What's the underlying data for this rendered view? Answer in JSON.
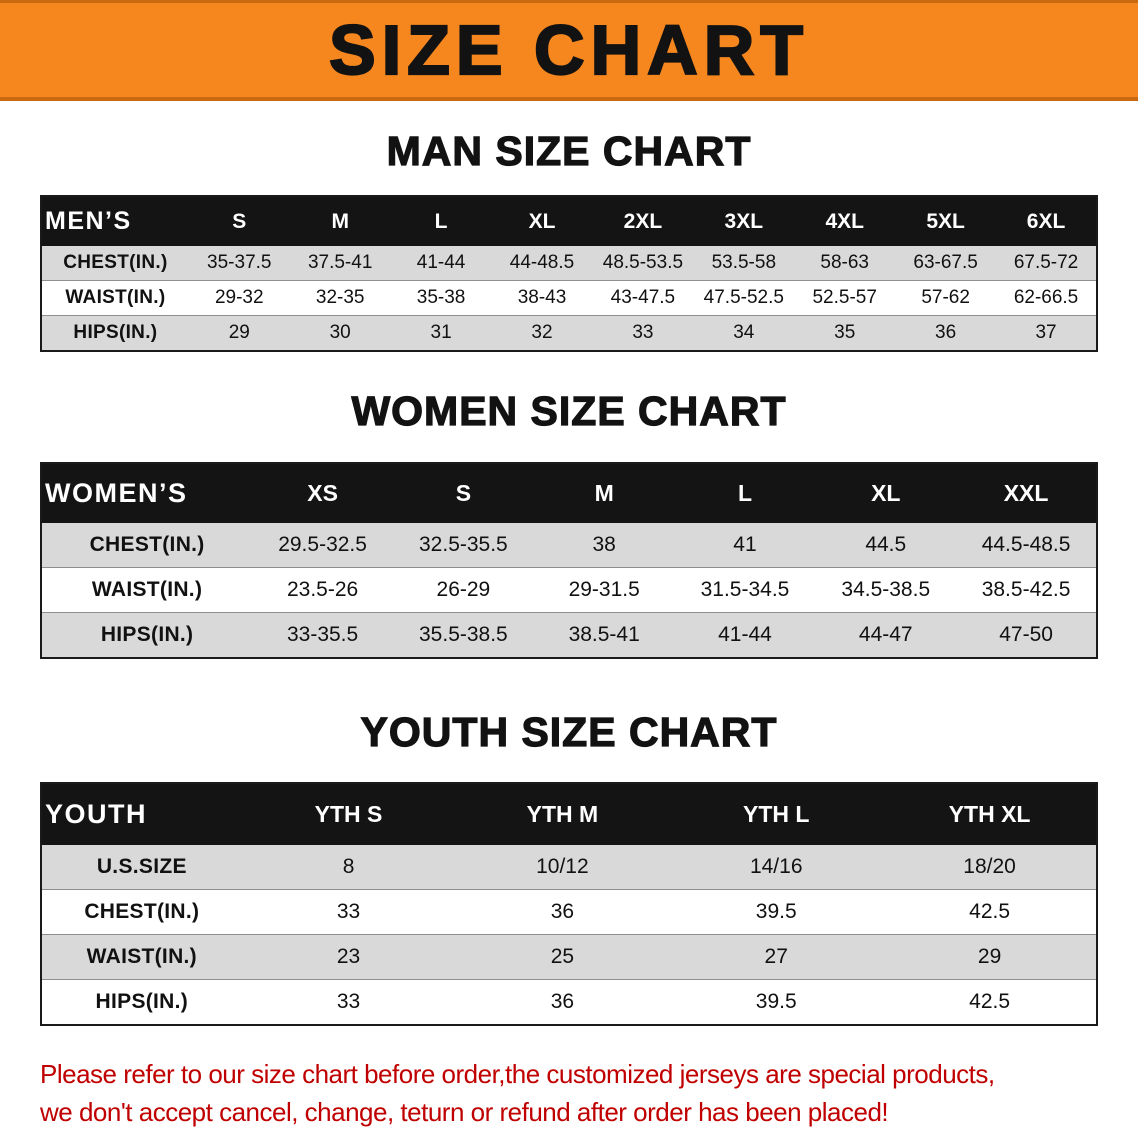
{
  "banner": {
    "title": "SIZE CHART"
  },
  "colors": {
    "page_bg": "#ffffff",
    "banner_bg": "#f6871f",
    "banner_edge": "#c96a10",
    "title_color": "#121212",
    "header_row_bg": "#141414",
    "header_row_text": "#ffffff",
    "stripe_row_bg": "#d9d9d9",
    "table_border": "#1a1a1a",
    "disclaimer_color": "#c00000"
  },
  "chart_data": [
    {
      "type": "table",
      "title": "MAN SIZE CHART",
      "columns": [
        "MEN’S",
        "S",
        "M",
        "L",
        "XL",
        "2XL",
        "3XL",
        "4XL",
        "5XL",
        "6XL"
      ],
      "rows": [
        [
          "CHEST(IN.)",
          "35-37.5",
          "37.5-41",
          "41-44",
          "44-48.5",
          "48.5-53.5",
          "53.5-58",
          "58-63",
          "63-67.5",
          "67.5-72"
        ],
        [
          "WAIST(IN.)",
          "29-32",
          "32-35",
          "35-38",
          "38-43",
          "43-47.5",
          "47.5-52.5",
          "52.5-57",
          "57-62",
          "62-66.5"
        ],
        [
          "HIPS(IN.)",
          "29",
          "30",
          "31",
          "32",
          "33",
          "34",
          "35",
          "36",
          "37"
        ]
      ],
      "label_col_width": "14%"
    },
    {
      "type": "table",
      "title": "WOMEN SIZE CHART",
      "columns": [
        "WOMEN’S",
        "XS",
        "S",
        "M",
        "L",
        "XL",
        "XXL"
      ],
      "rows": [
        [
          "CHEST(IN.)",
          "29.5-32.5",
          "32.5-35.5",
          "38",
          "41",
          "44.5",
          "44.5-48.5"
        ],
        [
          "WAIST(IN.)",
          "23.5-26",
          "26-29",
          "29-31.5",
          "31.5-34.5",
          "34.5-38.5",
          "38.5-42.5"
        ],
        [
          "HIPS(IN.)",
          "33-35.5",
          "35.5-38.5",
          "38.5-41",
          "41-44",
          "44-47",
          "47-50"
        ]
      ],
      "label_col_width": "20%"
    },
    {
      "type": "table",
      "title": "YOUTH SIZE CHART",
      "columns": [
        "YOUTH",
        "YTH S",
        "YTH M",
        "YTH L",
        "YTH XL"
      ],
      "rows": [
        [
          "U.S.SIZE",
          "8",
          "10/12",
          "14/16",
          "18/20"
        ],
        [
          "CHEST(IN.)",
          "33",
          "36",
          "39.5",
          "42.5"
        ],
        [
          "WAIST(IN.)",
          "23",
          "25",
          "27",
          "29"
        ],
        [
          "HIPS(IN.)",
          "33",
          "36",
          "39.5",
          "42.5"
        ]
      ],
      "label_col_width": "19%"
    }
  ],
  "disclaimer": {
    "lines": [
      "Please refer to our size chart before order,the customized jerseys are special products,",
      "we don't accept cancel, change, teturn or refund after order has been placed!"
    ]
  }
}
